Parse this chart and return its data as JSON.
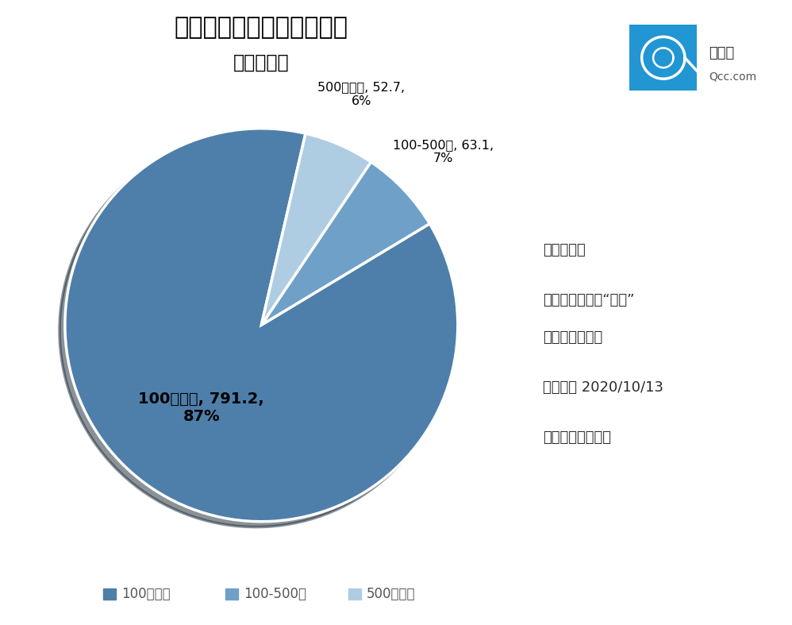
{
  "title_line1": "餐饮相关企业注册资本分布",
  "title_line2": "单位：万家",
  "labels": [
    "100万以内",
    "100-500万",
    "500万以上"
  ],
  "values": [
    791.2,
    63.1,
    52.7
  ],
  "colors": [
    "#4e7faa",
    "#6fa0c8",
    "#aecde3"
  ],
  "label_texts": [
    "100万以内, 791.2,\n87%",
    "100-500万, 63.1,\n7%",
    "500万以上, 52.7,\n6%"
  ],
  "note_lines": [
    "数据说明：",
    "仅统计关键词为“餐饮”",
    "的在业存续企业",
    "统计时间 2020/10/13",
    "数据来源：企查查"
  ],
  "background_color": "#ffffff",
  "text_color": "#2b2b2b",
  "legend_colors": [
    "#4e7faa",
    "#6fa0c8",
    "#aecde3"
  ],
  "legend_labels": [
    "100万以内",
    "100-500万",
    "500万以上"
  ],
  "startangle": 77,
  "logo_color": "#2196d3",
  "logo_text": "企查查",
  "logo_url": "Qcc.com"
}
